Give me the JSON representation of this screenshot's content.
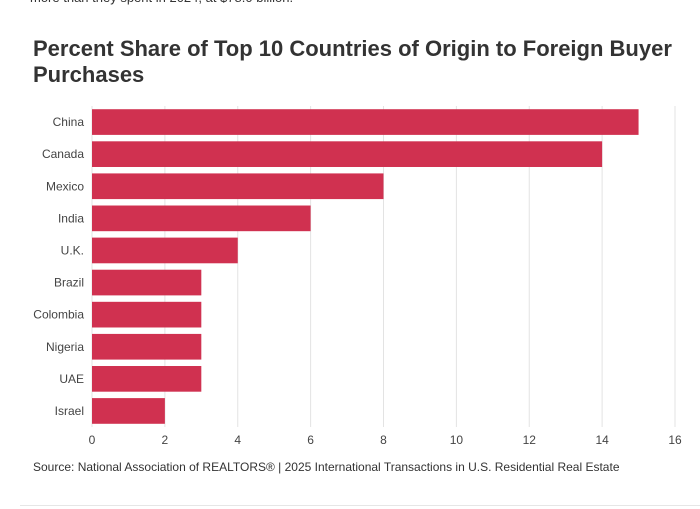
{
  "article": {
    "intro_fragment": "more than they spent in 2024, at $78.0 billion."
  },
  "chart_data": {
    "type": "bar",
    "orientation": "horizontal",
    "title": "Percent Share of Top 10 Countries of Origin to Foreign Buyer Purchases",
    "categories": [
      "China",
      "Canada",
      "Mexico",
      "India",
      "U.K.",
      "Brazil",
      "Colombia",
      "Nigeria",
      "UAE",
      "Israel"
    ],
    "values": [
      15,
      14,
      8,
      6,
      4,
      3,
      3,
      3,
      3,
      2
    ],
    "xlim": [
      0,
      16
    ],
    "xticks": [
      0,
      2,
      4,
      6,
      8,
      10,
      12,
      14,
      16
    ],
    "grid": true,
    "bar_color": "#d03150",
    "source": "Source: National Association of REALTORS® | 2025 International Transactions in U.S. Residential Real Estate"
  }
}
